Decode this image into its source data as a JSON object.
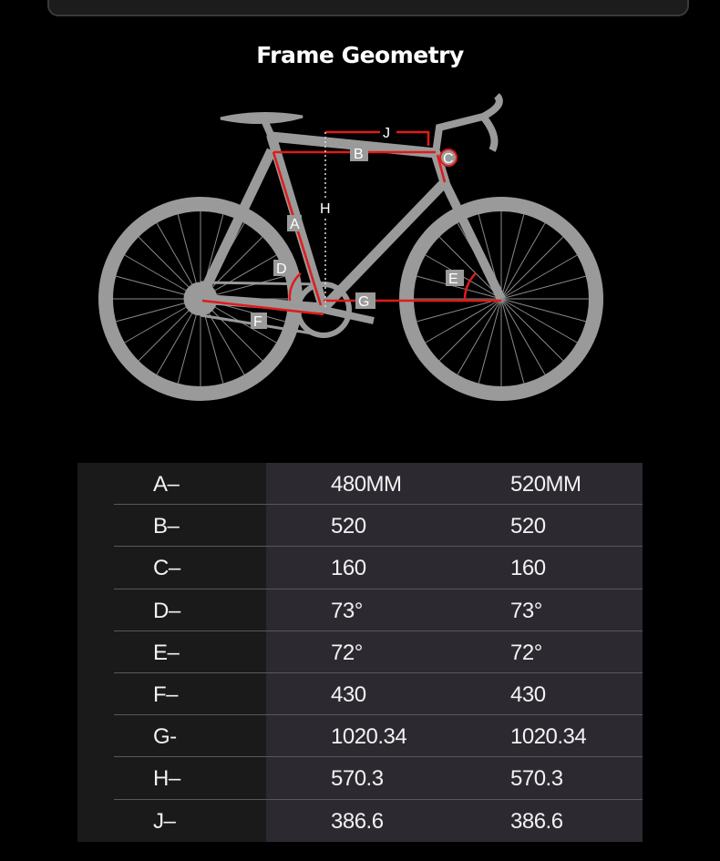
{
  "title": "Frame Geometry",
  "diagram": {
    "labels": [
      "A",
      "B",
      "C",
      "D",
      "E",
      "F",
      "G",
      "H",
      "J"
    ],
    "colors": {
      "frame": "#9a9a9a",
      "measure": "#e01b1b",
      "background": "#000000"
    }
  },
  "table": {
    "rows": [
      [
        "A–",
        "480MM",
        "520MM"
      ],
      [
        "B–",
        "520",
        "520"
      ],
      [
        "C–",
        "160",
        "160"
      ],
      [
        "D–",
        "73°",
        "73°"
      ],
      [
        "E–",
        "72°",
        "72°"
      ],
      [
        "F–",
        "430",
        "430"
      ],
      [
        "G-",
        "1020.34",
        "1020.34"
      ],
      [
        "H–",
        "570.3",
        "570.3"
      ],
      [
        "J–",
        "386.6",
        "386.6"
      ]
    ]
  }
}
